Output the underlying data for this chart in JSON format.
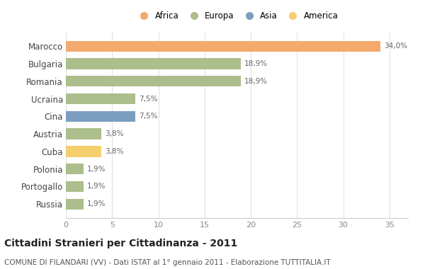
{
  "countries": [
    "Marocco",
    "Bulgaria",
    "Romania",
    "Ucraina",
    "Cina",
    "Austria",
    "Cuba",
    "Polonia",
    "Portogallo",
    "Russia"
  ],
  "values": [
    34.0,
    18.9,
    18.9,
    7.5,
    7.5,
    3.8,
    3.8,
    1.9,
    1.9,
    1.9
  ],
  "labels": [
    "34,0%",
    "18,9%",
    "18,9%",
    "7,5%",
    "7,5%",
    "3,8%",
    "3,8%",
    "1,9%",
    "1,9%",
    "1,9%"
  ],
  "colors": [
    "#F4A96D",
    "#ABBE8B",
    "#ABBE8B",
    "#ABBE8B",
    "#7B9EC0",
    "#ABBE8B",
    "#F5CF6E",
    "#ABBE8B",
    "#ABBE8B",
    "#ABBE8B"
  ],
  "legend_labels": [
    "Africa",
    "Europa",
    "Asia",
    "America"
  ],
  "legend_colors": [
    "#F4A96D",
    "#ABBE8B",
    "#7B9EC0",
    "#F5CF6E"
  ],
  "xlim": [
    0,
    37
  ],
  "xticks": [
    0,
    5,
    10,
    15,
    20,
    25,
    30,
    35
  ],
  "title": "Cittadini Stranieri per Cittadinanza - 2011",
  "subtitle": "COMUNE DI FILANDARI (VV) - Dati ISTAT al 1° gennaio 2011 - Elaborazione TUTTITALIA.IT",
  "title_fontsize": 10,
  "subtitle_fontsize": 7.5,
  "background_color": "#ffffff",
  "bar_height": 0.62
}
